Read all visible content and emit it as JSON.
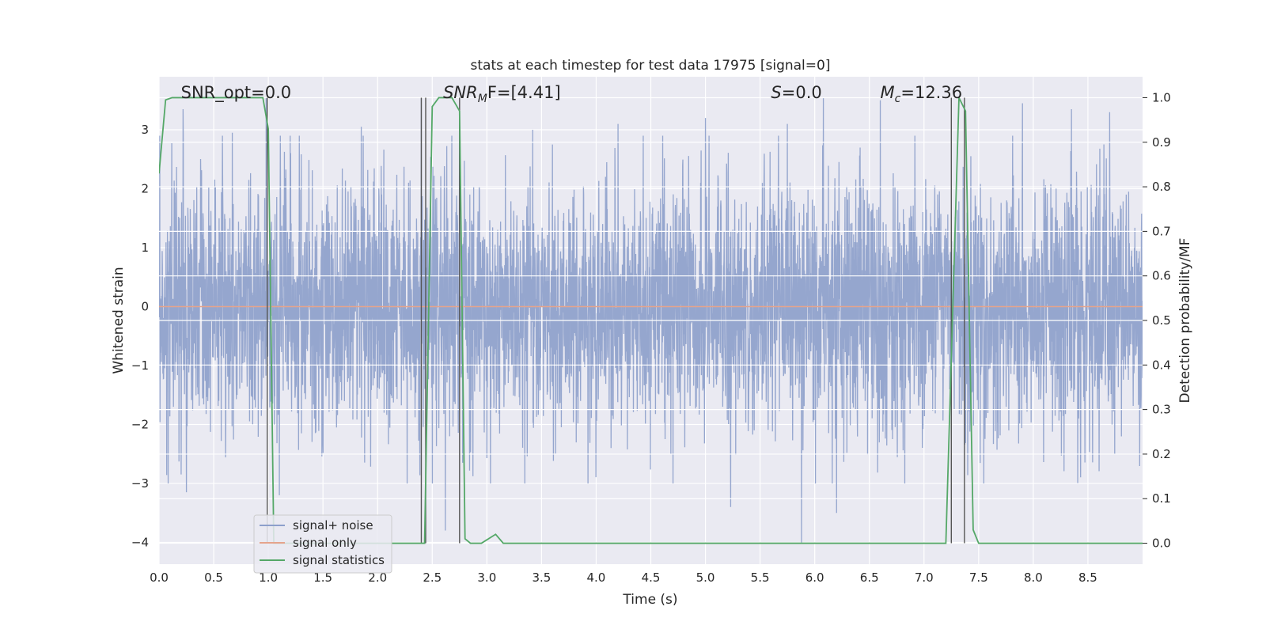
{
  "chart_data": {
    "type": "line",
    "title": "stats at each timestep for test data 17975 [signal=0]",
    "xlabel": "Time (s)",
    "ylabel": "Whitened strain",
    "y2label": "Detection probability/MF",
    "xlim": [
      0,
      9.0
    ],
    "ylim": [
      -4.37,
      3.9
    ],
    "y2lim": [
      -0.047,
      1.047
    ],
    "x_ticks": [
      0.0,
      0.5,
      1.0,
      1.5,
      2.0,
      2.5,
      3.0,
      3.5,
      4.0,
      4.5,
      5.0,
      5.5,
      6.0,
      6.5,
      7.0,
      7.5,
      8.0,
      8.5
    ],
    "x_tick_labels": [
      "0.0",
      "0.5",
      "1.0",
      "1.5",
      "2.0",
      "2.5",
      "3.0",
      "3.5",
      "4.0",
      "4.5",
      "5.0",
      "5.5",
      "6.0",
      "6.5",
      "7.0",
      "7.5",
      "8.0",
      "8.5"
    ],
    "y_ticks": [
      -4,
      -3,
      -2,
      -1,
      0,
      1,
      2,
      3
    ],
    "y_tick_labels": [
      "−4",
      "−3",
      "−2",
      "−1",
      "0",
      "1",
      "2",
      "3"
    ],
    "y2_ticks": [
      0.0,
      0.1,
      0.2,
      0.3,
      0.4,
      0.5,
      0.6,
      0.7,
      0.8,
      0.9,
      1.0
    ],
    "y2_tick_labels": [
      "0.0",
      "0.1",
      "0.2",
      "0.3",
      "0.4",
      "0.5",
      "0.6",
      "0.7",
      "0.8",
      "0.9",
      "1.0"
    ],
    "grid": true,
    "legend_position": "lower-left",
    "annotations": {
      "snr_opt": {
        "text": "SNR_opt=0.0",
        "x": 0.2
      },
      "snr_mf": {
        "text_main": "SNR",
        "text_sub": "M",
        "text_rest": "F=[4.41]",
        "x": 2.6
      },
      "s": {
        "text_main": "S",
        "text_rest": "=0.0",
        "x": 5.6
      },
      "mc": {
        "text_main": "M",
        "text_sub": "c",
        "text_rest": "=12.36",
        "x": 6.6
      }
    },
    "vertical_lines_x": [
      0.99,
      2.4,
      2.44,
      2.75,
      7.25,
      7.37
    ],
    "series": [
      {
        "name": "signal+ noise",
        "color": "#8da0cb",
        "axis": "left",
        "noise_sigma": 0.78,
        "noise_samples": 4096,
        "noise_spikes": [
          [
            0.22,
            3.35
          ],
          [
            0.67,
            2.95
          ],
          [
            0.98,
            3.55
          ],
          [
            1.85,
            3.05
          ],
          [
            2.4,
            3.55
          ],
          [
            2.62,
            -3.8
          ],
          [
            2.75,
            3.0
          ],
          [
            3.42,
            3.0
          ],
          [
            3.6,
            2.75
          ],
          [
            4.2,
            3.1
          ],
          [
            5.0,
            3.2
          ],
          [
            5.75,
            3.1
          ],
          [
            5.88,
            -4.0
          ],
          [
            6.08,
            3.55
          ],
          [
            6.6,
            3.5
          ],
          [
            6.2,
            -3.5
          ],
          [
            5.23,
            -3.4
          ],
          [
            7.9,
            3.45
          ],
          [
            8.35,
            3.35
          ],
          [
            8.7,
            3.3
          ],
          [
            1.1,
            -3.2
          ],
          [
            0.25,
            -3.15
          ]
        ]
      },
      {
        "name": "signal only",
        "color": "#e5a48c",
        "axis": "left",
        "x": [
          0.0,
          9.0
        ],
        "y": [
          0.0,
          0.0
        ]
      },
      {
        "name": "signal statistics",
        "color": "#55a868",
        "axis": "right",
        "x": [
          0.0,
          0.06,
          0.12,
          0.5,
          0.7,
          0.95,
          1.0,
          1.05,
          1.1,
          2.0,
          2.43,
          2.5,
          2.56,
          2.68,
          2.75,
          2.8,
          2.85,
          2.9,
          2.95,
          3.08,
          3.15,
          3.2,
          7.0,
          7.2,
          7.32,
          7.38,
          7.45,
          7.5,
          9.0
        ],
        "y": [
          0.83,
          0.995,
          1.0,
          1.0,
          1.0,
          1.0,
          0.93,
          0.0,
          0.0,
          0.0,
          0.0,
          0.98,
          1.0,
          1.0,
          0.97,
          0.01,
          0.0,
          0.0,
          0.0,
          0.02,
          0.0,
          0.0,
          0.0,
          0.0,
          1.0,
          0.97,
          0.03,
          0.0,
          0.0
        ]
      }
    ]
  }
}
